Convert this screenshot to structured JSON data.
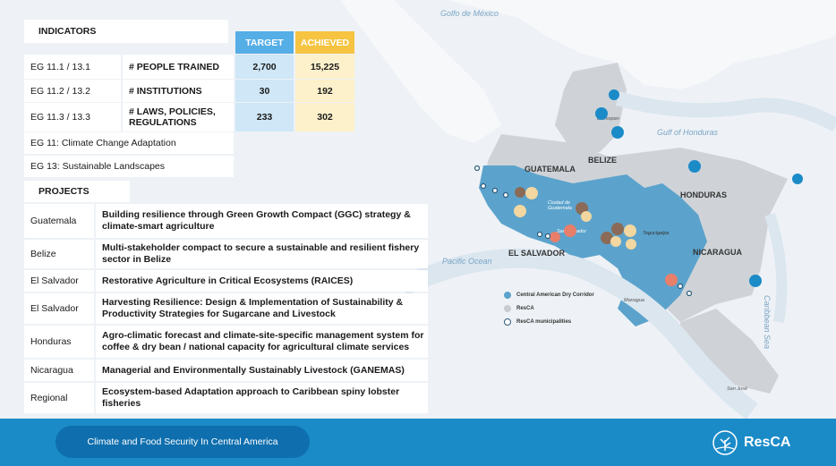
{
  "indicators": {
    "title": "INDICATORS",
    "target_label": "TARGET",
    "achieved_label": "ACHIEVED",
    "rows": [
      {
        "code": "EG 11.1 / 13.1",
        "name": "# PEOPLE TRAINED",
        "target": "2,700",
        "achieved": "15,225"
      },
      {
        "code": "EG 11.2 / 13.2",
        "name": "# INSTITUTIONS",
        "target": "30",
        "achieved": "192"
      },
      {
        "code": "EG 11.3 / 13.3",
        "name": "# LAWS, POLICIES, REGULATIONS",
        "target": "233",
        "achieved": "302"
      }
    ],
    "notes": [
      "EG 11: Climate Change Adaptation",
      "EG 13: Sustainable Landscapes"
    ]
  },
  "projects": {
    "title": "PROJECTS",
    "rows": [
      {
        "country": "Guatemala",
        "name": "Building resilience through Green Growth Compact (GGC) strategy & climate-smart agriculture"
      },
      {
        "country": "Belize",
        "name": "Multi-stakeholder compact to secure a sustainable and resilient fishery sector in Belize"
      },
      {
        "country": "El Salvador",
        "name": "Restorative Agriculture in Critical Ecosystems (RAICES)"
      },
      {
        "country": "El Salvador",
        "name": "Harvesting Resilience: Design & Implementation of Sustainability & Productivity Strategies for Sugarcane and Livestock"
      },
      {
        "country": "Honduras",
        "name": "Agro-climatic forecast and climate-site-specific management system for coffee & dry bean / national capacity for agricultural climate services"
      },
      {
        "country": "Nicaragua",
        "name": "Managerial and Environmentally Sustainably Livestock (GANEMAS)"
      },
      {
        "country": "Regional",
        "name": "Ecosystem-based Adaptation approach to Caribbean spiny lobster fisheries"
      }
    ]
  },
  "map": {
    "water_labels": [
      "Golfo de México",
      "Gulf of Honduras",
      "Pacific Ocean",
      "Caribbean Sea"
    ],
    "countries": [
      "GUATEMALA",
      "BELIZE",
      "HONDURAS",
      "EL SALVADOR",
      "NICARAGUA"
    ],
    "cities": [
      "Belmopan",
      "Ciudad de Guatemala",
      "San Salvador",
      "Tegucigalpa",
      "Managua",
      "San José"
    ],
    "legend": [
      {
        "label": "Central American Dry Corridor",
        "color": "#5ba3cc"
      },
      {
        "label": "ResCA",
        "color": "#c9cdd2"
      },
      {
        "label": "ResCA municipalities",
        "color": "#ffffff"
      }
    ]
  },
  "footer": {
    "title": "Climate and Food Security In Central America",
    "logo_text": "ResCA"
  },
  "colors": {
    "target_header": "#55aee6",
    "achieved_header": "#f6c441",
    "footer": "#1b8bc8",
    "dry_corridor": "#5ba3cc"
  }
}
